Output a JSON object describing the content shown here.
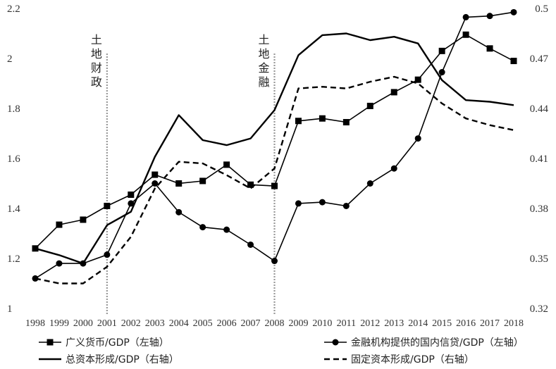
{
  "chart_data": {
    "type": "line",
    "categories": [
      "1998",
      "1999",
      "2000",
      "2001",
      "2002",
      "2003",
      "2004",
      "2005",
      "2006",
      "2007",
      "2008",
      "2009",
      "2010",
      "2011",
      "2012",
      "2013",
      "2014",
      "2015",
      "2016",
      "2017",
      "2018"
    ],
    "y_left": {
      "range": [
        1,
        2.2
      ],
      "ticks": [
        "1",
        "1.2",
        "1.4",
        "1.6",
        "1.8",
        "2",
        "2.2"
      ]
    },
    "y_right": {
      "range": [
        0.32,
        0.5
      ],
      "ticks": [
        "0.32",
        "0.35",
        "0.38",
        "0.41",
        "0.44",
        "0.47",
        "0.5"
      ]
    },
    "grid": false,
    "legend_position": "bottom",
    "annotations": [
      {
        "text": "土地财政",
        "x": "2001"
      },
      {
        "text": "土地金融",
        "x": "2008"
      }
    ],
    "series": [
      {
        "name": "广义货币/GDP（左轴）",
        "axis": "left",
        "marker": "square",
        "style": "solid",
        "values": [
          1.24,
          1.335,
          1.355,
          1.41,
          1.455,
          1.535,
          1.5,
          1.51,
          1.575,
          1.495,
          1.49,
          1.75,
          1.76,
          1.745,
          1.81,
          1.865,
          1.915,
          2.03,
          2.095,
          2.04,
          1.99
        ]
      },
      {
        "name": "金融机构提供的国内信贷/GDP（左轴）",
        "axis": "left",
        "marker": "circle",
        "style": "solid",
        "values": [
          1.12,
          1.18,
          1.18,
          1.215,
          1.42,
          1.5,
          1.385,
          1.325,
          1.315,
          1.255,
          1.19,
          1.42,
          1.425,
          1.41,
          1.5,
          1.56,
          1.68,
          1.945,
          2.165,
          2.17,
          2.185
        ]
      },
      {
        "name": "总资本形成/GDP（右轴）",
        "axis": "right",
        "marker": "none",
        "style": "solid",
        "values": [
          0.356,
          0.352,
          0.347,
          0.37,
          0.378,
          0.411,
          0.436,
          0.421,
          0.418,
          0.422,
          0.439,
          0.472,
          0.484,
          0.485,
          0.481,
          0.483,
          0.479,
          0.457,
          0.445,
          0.444,
          0.442
        ]
      },
      {
        "name": "固定资本形成/GDP（右轴）",
        "axis": "right",
        "marker": "none",
        "style": "dashed",
        "values": [
          0.338,
          0.335,
          0.335,
          0.345,
          0.363,
          0.392,
          0.408,
          0.407,
          0.4,
          0.392,
          0.404,
          0.452,
          0.453,
          0.452,
          0.456,
          0.459,
          0.455,
          0.443,
          0.434,
          0.43,
          0.427
        ]
      }
    ]
  }
}
